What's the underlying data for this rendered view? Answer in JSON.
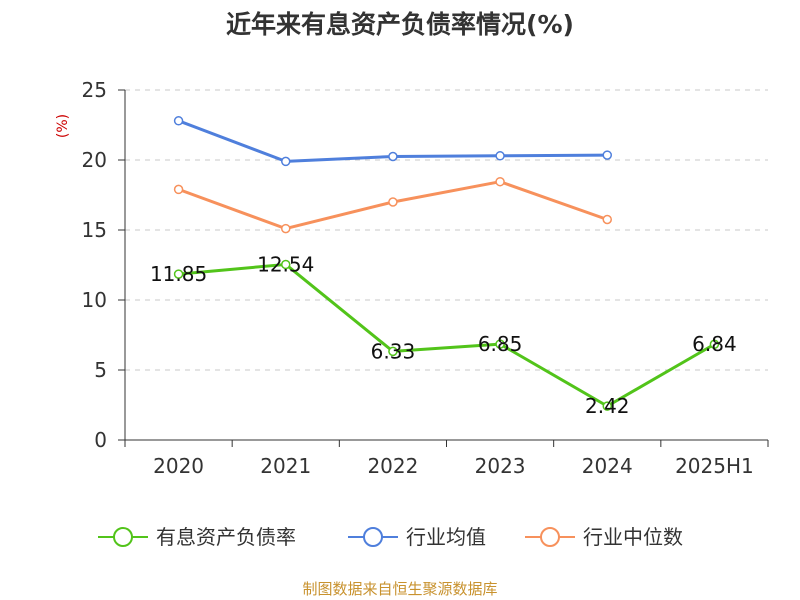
{
  "chart_data": {
    "type": "line",
    "title": "近年来有息资产负债率情况(%)",
    "ylabel": "(%)",
    "xlabel": "",
    "categories": [
      "2020",
      "2021",
      "2022",
      "2023",
      "2024",
      "2025H1"
    ],
    "ylim": [
      0,
      25
    ],
    "yticks": [
      0,
      5,
      10,
      15,
      20,
      25
    ],
    "grid": true,
    "legend_position": "bottom",
    "series": [
      {
        "name": "有息资产负债率",
        "color": "#52c41a",
        "values": [
          11.85,
          12.54,
          6.33,
          6.85,
          2.42,
          6.84
        ],
        "labels": [
          "11.85",
          "12.54",
          "6.33",
          "6.85",
          "2.42",
          "6.84"
        ]
      },
      {
        "name": "行业均值",
        "color": "#4f7fdc",
        "values": [
          22.8,
          19.9,
          20.25,
          20.3,
          20.35,
          null
        ]
      },
      {
        "name": "行业中位数",
        "color": "#f7915c",
        "values": [
          17.9,
          15.1,
          17.0,
          18.45,
          15.75,
          null
        ]
      }
    ],
    "source": "制图数据来自恒生聚源数据库"
  }
}
